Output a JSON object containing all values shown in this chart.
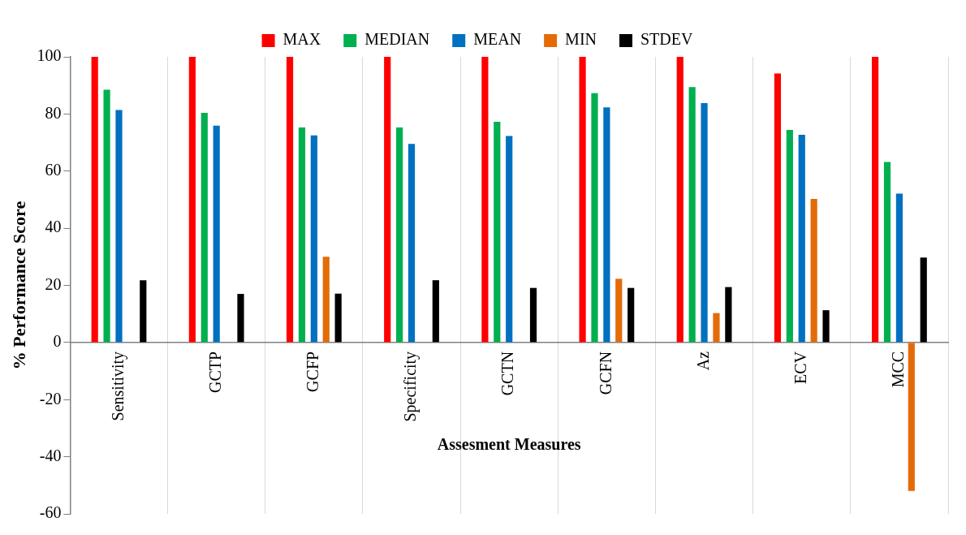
{
  "chart_data": {
    "type": "bar",
    "xlabel": "Assesment Measures",
    "ylabel": "% Performance Score",
    "categories": [
      "Sensitivity",
      "GCTP",
      "GCFP",
      "Specificity",
      "GCTN",
      "GCFN",
      "Az",
      "ECV",
      "MCC"
    ],
    "series": [
      {
        "name": "MAX",
        "color": "#ff0000",
        "values": [
          100,
          100,
          100,
          100,
          100,
          100,
          100,
          94.2,
          100
        ]
      },
      {
        "name": "MEDIAN",
        "color": "#00b050",
        "values": [
          88.5,
          80.4,
          75.3,
          75.3,
          77.3,
          87.3,
          89.4,
          74.4,
          63.2
        ]
      },
      {
        "name": "MEAN",
        "color": "#0070c0",
        "values": [
          81.4,
          75.9,
          72.5,
          69.5,
          72.3,
          82.3,
          83.8,
          72.7,
          52.1
        ]
      },
      {
        "name": "MIN",
        "color": "#e36c09",
        "values": [
          null,
          null,
          30,
          null,
          null,
          22.3,
          10.3,
          50.3,
          -52
        ]
      },
      {
        "name": "STDEV",
        "color": "#000000",
        "values": [
          21.8,
          17,
          17.1,
          21.8,
          19.1,
          19.1,
          19.4,
          11.3,
          29.7
        ]
      }
    ],
    "ylim": [
      -60,
      100
    ],
    "yticks": [
      -60,
      -40,
      -20,
      0,
      20,
      40,
      60,
      80,
      100
    ],
    "grid": "x",
    "legend": "top"
  }
}
